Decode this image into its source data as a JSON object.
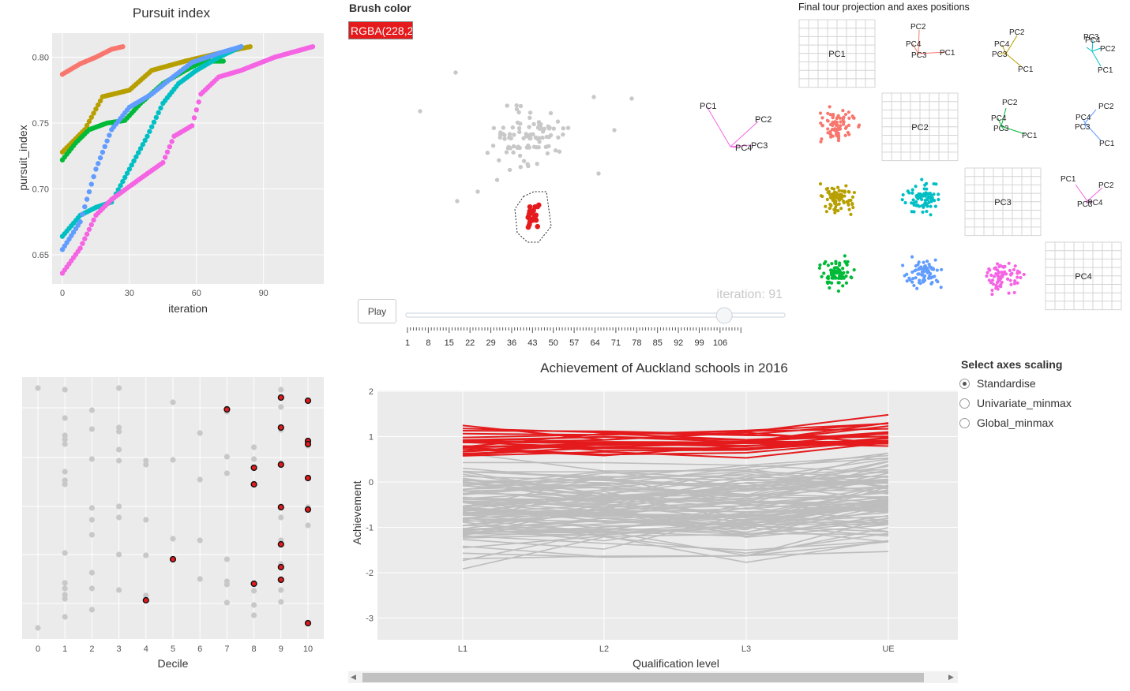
{
  "pursuit": {
    "title": "Pursuit index",
    "xlabel": "iteration",
    "ylabel": "pursuit_index",
    "xticks": [
      "0",
      "30",
      "60",
      "90"
    ],
    "yticks": [
      "0.65",
      "0.70",
      "0.75",
      "0.80"
    ]
  },
  "brush": {
    "label": "Brush color",
    "value": "RGBA(228,2"
  },
  "scatter_axes": {
    "pc1": "PC1",
    "pc2": "PC2",
    "pc3": "PC3",
    "pc4": "PC4"
  },
  "iteration_label": "iteration: 91",
  "play_label": "Play",
  "slider": {
    "value_fraction": 0.84,
    "ticks": [
      "1",
      "8",
      "15",
      "22",
      "29",
      "36",
      "43",
      "50",
      "57",
      "64",
      "71",
      "78",
      "85",
      "92",
      "99",
      "106"
    ]
  },
  "tour": {
    "title": "Final tour projection and axes positions",
    "diag": [
      "PC1",
      "PC2",
      "PC3",
      "PC4"
    ],
    "pc1": "PC1",
    "pc2": "PC2",
    "pc3": "PC3",
    "pc4": "PC4"
  },
  "decile": {
    "xlabel": "Decile",
    "xticks": [
      "0",
      "1",
      "2",
      "3",
      "4",
      "5",
      "6",
      "7",
      "8",
      "9",
      "10"
    ]
  },
  "parcoord": {
    "title": "Achievement of Auckland schools in 2016",
    "xlabel": "Qualification level",
    "ylabel": "Achievement",
    "xticks": [
      "L1",
      "L2",
      "L3",
      "UE"
    ],
    "yticks": [
      "2",
      "1",
      "0",
      "-1",
      "-2",
      "-3"
    ]
  },
  "scaling": {
    "title": "Select axes scaling",
    "options": [
      "Standardise",
      "Univariate_minmax",
      "Global_minmax"
    ],
    "selected": "Standardise"
  },
  "colors": {
    "brush": "#e41a1c",
    "panel": "#ebebeb",
    "grey": "#bdbdbd",
    "series": [
      "#f8766d",
      "#b79f00",
      "#00ba38",
      "#00bfc4",
      "#619cff",
      "#f564e3"
    ]
  }
}
